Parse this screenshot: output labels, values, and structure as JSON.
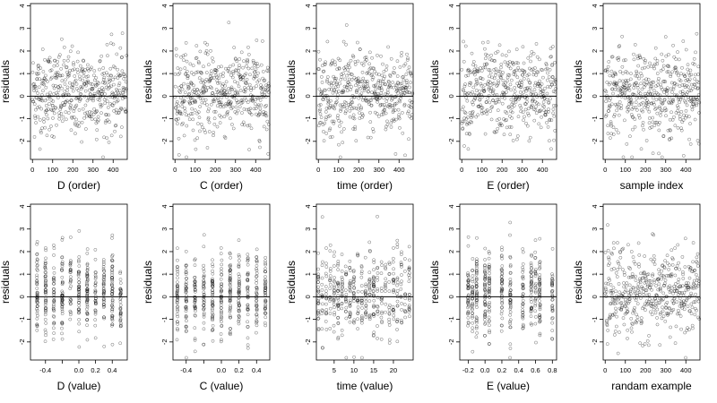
{
  "chart_data": [
    {
      "type": "scatter",
      "xlabel": "D (order)",
      "ylabel": "residuals",
      "xticks": [
        0,
        100,
        200,
        300,
        400
      ],
      "xlim": [
        -10,
        470
      ],
      "yticks": [
        -2,
        -1,
        0,
        1,
        2,
        3,
        4
      ],
      "ylim": [
        -2.8,
        4.1
      ],
      "reference_line_y": 0,
      "n_points": 468
    },
    {
      "type": "scatter",
      "xlabel": "C (order)",
      "ylabel": "residuals",
      "xticks": [
        0,
        100,
        200,
        300,
        400
      ],
      "xlim": [
        -10,
        470
      ],
      "yticks": [
        -2,
        -1,
        0,
        1,
        2,
        3,
        4
      ],
      "ylim": [
        -2.8,
        4.1
      ],
      "reference_line_y": 0,
      "n_points": 468
    },
    {
      "type": "scatter",
      "xlabel": "time (order)",
      "ylabel": "residuals",
      "xticks": [
        0,
        100,
        200,
        300,
        400
      ],
      "xlim": [
        -10,
        470
      ],
      "yticks": [
        -2,
        -1,
        0,
        1,
        2,
        3,
        4
      ],
      "ylim": [
        -2.8,
        4.1
      ],
      "reference_line_y": 0,
      "n_points": 468
    },
    {
      "type": "scatter",
      "xlabel": "E (order)",
      "ylabel": "residuals",
      "xticks": [
        0,
        100,
        200,
        300,
        400
      ],
      "xlim": [
        -10,
        470
      ],
      "yticks": [
        -2,
        -1,
        0,
        1,
        2,
        3,
        4
      ],
      "ylim": [
        -2.8,
        4.1
      ],
      "reference_line_y": 0,
      "n_points": 468
    },
    {
      "type": "scatter",
      "xlabel": "sample index",
      "ylabel": "residuals",
      "xticks": [
        0,
        100,
        200,
        300,
        400
      ],
      "xlim": [
        -10,
        470
      ],
      "yticks": [
        -2,
        -1,
        0,
        1,
        2,
        3,
        4
      ],
      "ylim": [
        -2.8,
        4.1
      ],
      "reference_line_y": 0,
      "n_points": 468
    },
    {
      "type": "scatter",
      "xlabel": "D (value)",
      "ylabel": "residuals",
      "xticks": [
        -0.4,
        -0.2,
        0.0,
        0.2,
        0.4
      ],
      "xtick_labels": [
        "-0.4",
        "",
        "0.0",
        "0.2",
        "0.4"
      ],
      "xlim": [
        -0.58,
        0.58
      ],
      "yticks": [
        -2,
        -1,
        0,
        1,
        2,
        3,
        4
      ],
      "ylim": [
        -2.8,
        4.1
      ],
      "reference_line_y": 0,
      "x_levels": [
        -0.5,
        -0.4,
        -0.3,
        -0.2,
        -0.1,
        0.0,
        0.1,
        0.2,
        0.3,
        0.4,
        0.5
      ],
      "n_points": 468
    },
    {
      "type": "scatter",
      "xlabel": "C (value)",
      "ylabel": "residuals",
      "xticks": [
        -0.4,
        -0.2,
        0.0,
        0.2,
        0.4
      ],
      "xtick_labels": [
        "-0.4",
        "",
        "0.0",
        "0.2",
        "0.4"
      ],
      "xlim": [
        -0.55,
        0.55
      ],
      "yticks": [
        -2,
        -1,
        0,
        1,
        2,
        3,
        4
      ],
      "ylim": [
        -2.8,
        4.1
      ],
      "reference_line_y": 0,
      "x_levels": [
        -0.5,
        -0.4,
        -0.3,
        -0.2,
        -0.1,
        0.0,
        0.1,
        0.2,
        0.3,
        0.4,
        0.5
      ],
      "n_points": 468
    },
    {
      "type": "scatter",
      "xlabel": "time (value)",
      "ylabel": "residuals",
      "xticks": [
        5,
        10,
        15,
        20
      ],
      "xtick_labels": [
        "5",
        "10",
        "15",
        "20"
      ],
      "xlim": [
        0.5,
        25
      ],
      "yticks": [
        -2,
        -1,
        0,
        1,
        2,
        3,
        4
      ],
      "ylim": [
        -2.8,
        4.1
      ],
      "reference_line_y": 0,
      "x_levels": [
        1,
        2,
        3,
        4,
        5,
        6,
        7,
        8,
        9,
        10,
        11,
        12,
        13,
        14,
        15,
        16,
        17,
        18,
        19,
        20,
        21,
        22,
        23,
        24
      ],
      "n_points": 468
    },
    {
      "type": "scatter",
      "xlabel": "E (value)",
      "ylabel": "residuals",
      "xticks": [
        -0.2,
        0.0,
        0.2,
        0.4,
        0.6,
        0.8
      ],
      "xtick_labels": [
        "-0.2",
        "0.0",
        "0.2",
        "0.4",
        "0.6",
        "0.8"
      ],
      "xlim": [
        -0.3,
        0.85
      ],
      "yticks": [
        -2,
        -1,
        0,
        1,
        2,
        3,
        4
      ],
      "ylim": [
        -2.8,
        4.1
      ],
      "reference_line_y": 0,
      "x_levels": [
        -0.2,
        -0.15,
        -0.1,
        0.0,
        0.05,
        0.2,
        0.3,
        0.45,
        0.55,
        0.6,
        0.65,
        0.8
      ],
      "n_points": 468
    },
    {
      "type": "scatter",
      "xlabel": "randam example",
      "ylabel": "residuals",
      "xticks": [
        0,
        100,
        200,
        300,
        400
      ],
      "xlim": [
        -10,
        470
      ],
      "yticks": [
        -2,
        -1,
        0,
        1,
        2,
        3,
        4
      ],
      "ylim": [
        -2.8,
        4.1
      ],
      "reference_line_y": 0,
      "n_points": 468
    }
  ]
}
